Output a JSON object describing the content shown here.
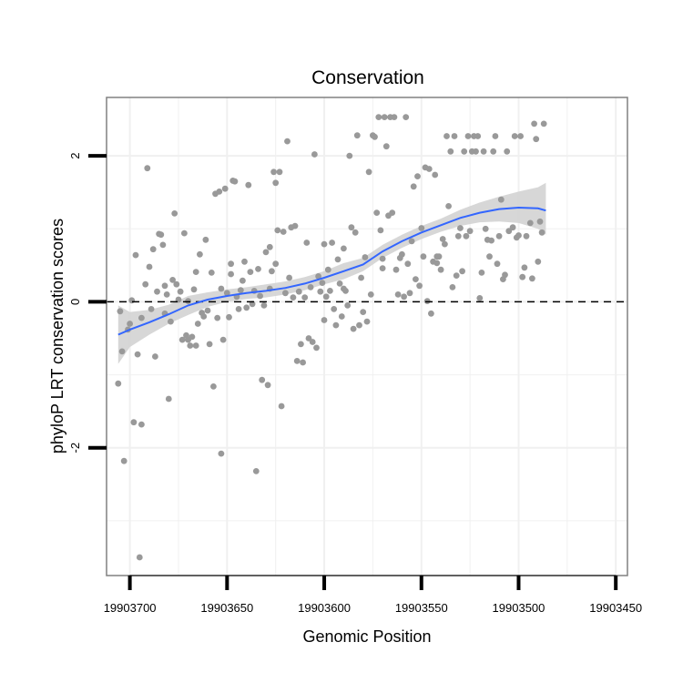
{
  "chart_data": {
    "type": "scatter",
    "title": "Conservation",
    "xlabel": "Genomic Position",
    "ylabel": "phyloP LRT conservation scores",
    "x_reversed": true,
    "xlim": [
      19903712,
      19903444
    ],
    "ylim": [
      -3.75,
      2.8
    ],
    "x_ticks": [
      19903700,
      19903650,
      19903600,
      19903550,
      19903500,
      19903450
    ],
    "x_tick_labels": [
      "19903700",
      "19903650",
      "19903600",
      "19903550",
      "19903500",
      "19903450"
    ],
    "y_ticks": [
      2,
      0,
      -2
    ],
    "y_tick_labels": [
      "2",
      "0",
      "-2"
    ],
    "y_minor_gridlines": [
      -3,
      -1,
      1
    ],
    "x_minor_gridlines": [
      19903675,
      19903625,
      19903575,
      19903525,
      19903475
    ],
    "reference_line": {
      "y": 0,
      "style": "dashed"
    },
    "grid": true,
    "colors": {
      "points": "#999999",
      "smooth_line": "#3366ff",
      "ribbon": "#d3d3d3",
      "panel_border": "#808080",
      "grid": "#f0f0f0"
    },
    "points": [
      [
        19903706,
        -1.12
      ],
      [
        19903705,
        -0.13
      ],
      [
        19903704,
        -0.68
      ],
      [
        19903703,
        -2.18
      ],
      [
        19903701,
        -0.38
      ],
      [
        19903700,
        -0.3
      ],
      [
        19903699,
        0.02
      ],
      [
        19903698,
        -1.65
      ],
      [
        19903697,
        0.64
      ],
      [
        19903696,
        -0.72
      ],
      [
        19903695,
        -3.5
      ],
      [
        19903694,
        -1.68
      ],
      [
        19903694,
        -0.22
      ],
      [
        19903692,
        0.24
      ],
      [
        19903691,
        1.83
      ],
      [
        19903690,
        0.48
      ],
      [
        19903689,
        -0.1
      ],
      [
        19903688,
        0.72
      ],
      [
        19903687,
        -0.75
      ],
      [
        19903686,
        0.14
      ],
      [
        19903685,
        0.93
      ],
      [
        19903684,
        0.92
      ],
      [
        19903683,
        0.78
      ],
      [
        19903682,
        -0.16
      ],
      [
        19903682,
        0.22
      ],
      [
        19903681,
        0.1
      ],
      [
        19903680,
        -1.33
      ],
      [
        19903679,
        -0.27
      ],
      [
        19903678,
        0.3
      ],
      [
        19903677,
        1.21
      ],
      [
        19903676,
        0.24
      ],
      [
        19903675,
        0.03
      ],
      [
        19903674,
        0.14
      ],
      [
        19903673,
        -0.52
      ],
      [
        19903672,
        0.94
      ],
      [
        19903671,
        -0.46
      ],
      [
        19903670,
        -0.52
      ],
      [
        19903670,
        0.01
      ],
      [
        19903669,
        -0.6
      ],
      [
        19903668,
        -0.48
      ],
      [
        19903667,
        0.17
      ],
      [
        19903666,
        -0.6
      ],
      [
        19903666,
        0.41
      ],
      [
        19903665,
        -0.3
      ],
      [
        19903664,
        0.65
      ],
      [
        19903663,
        -0.15
      ],
      [
        19903662,
        -0.2
      ],
      [
        19903661,
        0.85
      ],
      [
        19903660,
        -0.12
      ],
      [
        19903659,
        -0.58
      ],
      [
        19903658,
        0.4
      ],
      [
        19903657,
        -1.16
      ],
      [
        19903656,
        1.48
      ],
      [
        19903655,
        -0.22
      ],
      [
        19903654,
        1.51
      ],
      [
        19903653,
        -2.08
      ],
      [
        19903653,
        0.18
      ],
      [
        19903652,
        -0.52
      ],
      [
        19903651,
        1.55
      ],
      [
        19903650,
        0.12
      ],
      [
        19903649,
        -0.21
      ],
      [
        19903648,
        0.38
      ],
      [
        19903648,
        0.52
      ],
      [
        19903647,
        1.66
      ],
      [
        19903646,
        1.65
      ],
      [
        19903645,
        0.07
      ],
      [
        19903644,
        -0.1
      ],
      [
        19903643,
        0.16
      ],
      [
        19903642,
        0.29
      ],
      [
        19903641,
        0.55
      ],
      [
        19903640,
        -0.08
      ],
      [
        19903639,
        1.6
      ],
      [
        19903638,
        0.41
      ],
      [
        19903637,
        -0.03
      ],
      [
        19903636,
        0.15
      ],
      [
        19903635,
        -2.32
      ],
      [
        19903634,
        0.45
      ],
      [
        19903633,
        0.08
      ],
      [
        19903632,
        -1.07
      ],
      [
        19903631,
        -0.05
      ],
      [
        19903630,
        0.68
      ],
      [
        19903629,
        -1.14
      ],
      [
        19903628,
        0.75
      ],
      [
        19903628,
        0.18
      ],
      [
        19903627,
        0.42
      ],
      [
        19903626,
        1.78
      ],
      [
        19903625,
        0.52
      ],
      [
        19903625,
        1.63
      ],
      [
        19903624,
        0.98
      ],
      [
        19903623,
        1.78
      ],
      [
        19903622,
        -1.43
      ],
      [
        19903621,
        0.96
      ],
      [
        19903620,
        0.12
      ],
      [
        19903619,
        2.2
      ],
      [
        19903618,
        0.33
      ],
      [
        19903617,
        1.02
      ],
      [
        19903616,
        0.06
      ],
      [
        19903615,
        1.04
      ],
      [
        19903614,
        -0.81
      ],
      [
        19903613,
        0.14
      ],
      [
        19903612,
        -0.58
      ],
      [
        19903611,
        -0.83
      ],
      [
        19903610,
        0.06
      ],
      [
        19903609,
        0.81
      ],
      [
        19903608,
        -0.5
      ],
      [
        19903607,
        0.2
      ],
      [
        19903606,
        -0.55
      ],
      [
        19903605,
        2.02
      ],
      [
        19903604,
        -0.63
      ],
      [
        19903603,
        0.35
      ],
      [
        19903602,
        0.14
      ],
      [
        19903601,
        0.26
      ],
      [
        19903600,
        -0.25
      ],
      [
        19903600,
        0.79
      ],
      [
        19903599,
        0.07
      ],
      [
        19903598,
        0.44
      ],
      [
        19903597,
        0.15
      ],
      [
        19903596,
        0.81
      ],
      [
        19903595,
        -0.1
      ],
      [
        19903594,
        -0.32
      ],
      [
        19903593,
        0.58
      ],
      [
        19903592,
        0.25
      ],
      [
        19903591,
        -0.2
      ],
      [
        19903590,
        0.18
      ],
      [
        19903590,
        0.73
      ],
      [
        19903589,
        0.15
      ],
      [
        19903588,
        -0.05
      ],
      [
        19903587,
        2.0
      ],
      [
        19903586,
        1.02
      ],
      [
        19903585,
        -0.37
      ],
      [
        19903584,
        0.95
      ],
      [
        19903583,
        2.28
      ],
      [
        19903582,
        -0.32
      ],
      [
        19903581,
        0.33
      ],
      [
        19903580,
        -0.14
      ],
      [
        19903579,
        0.61
      ],
      [
        19903578,
        -0.27
      ],
      [
        19903577,
        1.78
      ],
      [
        19903576,
        0.1
      ],
      [
        19903575,
        2.28
      ],
      [
        19903574,
        2.26
      ],
      [
        19903573,
        1.22
      ],
      [
        19903572,
        2.53
      ],
      [
        19903571,
        0.98
      ],
      [
        19903570,
        0.59
      ],
      [
        19903570,
        0.46
      ],
      [
        19903569,
        2.53
      ],
      [
        19903568,
        2.13
      ],
      [
        19903567,
        1.18
      ],
      [
        19903566,
        2.53
      ],
      [
        19903565,
        1.22
      ],
      [
        19903564,
        2.53
      ],
      [
        19903563,
        0.44
      ],
      [
        19903562,
        0.1
      ],
      [
        19903561,
        0.6
      ],
      [
        19903560,
        0.65
      ],
      [
        19903559,
        0.07
      ],
      [
        19903558,
        2.53
      ],
      [
        19903557,
        0.52
      ],
      [
        19903556,
        0.12
      ],
      [
        19903555,
        0.83
      ],
      [
        19903554,
        1.58
      ],
      [
        19903553,
        0.31
      ],
      [
        19903552,
        1.72
      ],
      [
        19903551,
        0.22
      ],
      [
        19903550,
        1.01
      ],
      [
        19903549,
        0.62
      ],
      [
        19903548,
        1.84
      ],
      [
        19903547,
        0.01
      ],
      [
        19903546,
        1.82
      ],
      [
        19903545,
        -0.16
      ],
      [
        19903544,
        0.55
      ],
      [
        19903543,
        1.74
      ],
      [
        19903542,
        0.62
      ],
      [
        19903542,
        0.53
      ],
      [
        19903541,
        0.62
      ],
      [
        19903540,
        0.44
      ],
      [
        19903539,
        0.86
      ],
      [
        19903538,
        0.79
      ],
      [
        19903537,
        2.27
      ],
      [
        19903536,
        1.31
      ],
      [
        19903535,
        2.06
      ],
      [
        19903534,
        0.2
      ],
      [
        19903533,
        2.27
      ],
      [
        19903532,
        0.36
      ],
      [
        19903531,
        0.9
      ],
      [
        19903530,
        1.01
      ],
      [
        19903529,
        0.42
      ],
      [
        19903528,
        2.06
      ],
      [
        19903527,
        0.9
      ],
      [
        19903526,
        2.27
      ],
      [
        19903525,
        0.97
      ],
      [
        19903524,
        2.06
      ],
      [
        19903523,
        2.27
      ],
      [
        19903522,
        2.06
      ],
      [
        19903521,
        2.27
      ],
      [
        19903520,
        0.05
      ],
      [
        19903519,
        0.4
      ],
      [
        19903518,
        2.06
      ],
      [
        19903517,
        1.0
      ],
      [
        19903516,
        0.85
      ],
      [
        19903515,
        0.62
      ],
      [
        19903514,
        0.84
      ],
      [
        19903513,
        2.06
      ],
      [
        19903512,
        2.27
      ],
      [
        19903511,
        0.52
      ],
      [
        19903510,
        0.9
      ],
      [
        19903509,
        1.4
      ],
      [
        19903508,
        0.31
      ],
      [
        19903507,
        0.37
      ],
      [
        19903506,
        2.06
      ],
      [
        19903505,
        0.97
      ],
      [
        19903503,
        1.02
      ],
      [
        19903502,
        2.27
      ],
      [
        19903501,
        0.88
      ],
      [
        19903500,
        0.91
      ],
      [
        19903499,
        2.27
      ],
      [
        19903498,
        0.34
      ],
      [
        19903497,
        0.47
      ],
      [
        19903496,
        0.9
      ],
      [
        19903494,
        1.08
      ],
      [
        19903493,
        0.32
      ],
      [
        19903492,
        2.44
      ],
      [
        19903491,
        2.23
      ],
      [
        19903490,
        0.55
      ],
      [
        19903489,
        1.1
      ],
      [
        19903488,
        0.95
      ],
      [
        19903487,
        2.44
      ]
    ],
    "smooth": {
      "x": [
        19903706,
        19903700,
        19903690,
        19903680,
        19903670,
        19903660,
        19903650,
        19903640,
        19903630,
        19903620,
        19903610,
        19903600,
        19903590,
        19903580,
        19903570,
        19903560,
        19903550,
        19903540,
        19903530,
        19903520,
        19903510,
        19903500,
        19903490,
        19903486
      ],
      "y": [
        -0.45,
        -0.38,
        -0.28,
        -0.17,
        -0.05,
        0.03,
        0.08,
        0.12,
        0.15,
        0.19,
        0.25,
        0.33,
        0.42,
        0.51,
        0.69,
        0.83,
        0.95,
        1.05,
        1.15,
        1.22,
        1.27,
        1.29,
        1.28,
        1.25
      ],
      "lower": [
        -0.85,
        -0.62,
        -0.45,
        -0.3,
        -0.18,
        -0.07,
        0.0,
        0.04,
        0.06,
        0.1,
        0.16,
        0.24,
        0.31,
        0.42,
        0.6,
        0.74,
        0.86,
        0.96,
        1.04,
        1.09,
        1.1,
        1.08,
        1.0,
        0.92
      ],
      "upper": [
        -0.05,
        -0.14,
        -0.11,
        -0.04,
        0.08,
        0.13,
        0.17,
        0.2,
        0.24,
        0.28,
        0.34,
        0.42,
        0.53,
        0.6,
        0.78,
        0.92,
        1.04,
        1.14,
        1.26,
        1.36,
        1.44,
        1.51,
        1.57,
        1.63
      ]
    }
  }
}
